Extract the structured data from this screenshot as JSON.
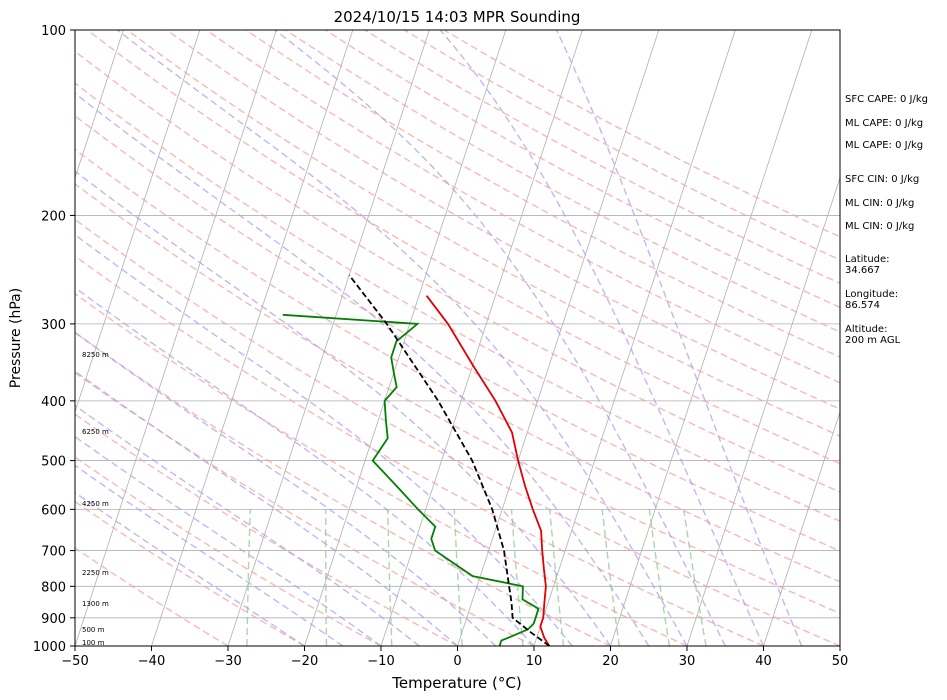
{
  "chart_data": {
    "type": "line",
    "title": "2024/10/15 14:03 MPR Sounding",
    "xlabel": "Temperature (°C)",
    "ylabel": "Pressure (hPa)",
    "xlim": [
      -50,
      50
    ],
    "ylim": [
      1000,
      100
    ],
    "y_scale": "log",
    "x_ticks": [
      "−50",
      "−40",
      "−30",
      "−20",
      "−10",
      "0",
      "10",
      "20",
      "30",
      "40",
      "50"
    ],
    "y_ticks": [
      "100",
      "200",
      "300",
      "400",
      "500",
      "600",
      "700",
      "800",
      "900",
      "1000"
    ],
    "grid": true,
    "series": [
      {
        "role": "temperature",
        "color": "#e00000",
        "style": "solid",
        "points": [
          [
            1000,
            12
          ],
          [
            970,
            11
          ],
          [
            930,
            10
          ],
          [
            900,
            10
          ],
          [
            850,
            9.5
          ],
          [
            800,
            9
          ],
          [
            750,
            8
          ],
          [
            700,
            7
          ],
          [
            650,
            6
          ],
          [
            600,
            4
          ],
          [
            550,
            2
          ],
          [
            500,
            0
          ],
          [
            450,
            -2
          ],
          [
            400,
            -5.5
          ],
          [
            350,
            -10
          ],
          [
            300,
            -15
          ],
          [
            270,
            -19
          ]
        ]
      },
      {
        "role": "dewpoint",
        "color": "#008000",
        "style": "solid",
        "points": [
          [
            1000,
            5.5
          ],
          [
            980,
            5.5
          ],
          [
            960,
            7
          ],
          [
            940,
            8.5
          ],
          [
            920,
            9
          ],
          [
            900,
            9
          ],
          [
            870,
            9
          ],
          [
            840,
            6.5
          ],
          [
            800,
            6
          ],
          [
            770,
            -1
          ],
          [
            700,
            -7
          ],
          [
            670,
            -8
          ],
          [
            640,
            -8
          ],
          [
            600,
            -11
          ],
          [
            560,
            -14
          ],
          [
            500,
            -19
          ],
          [
            460,
            -18
          ],
          [
            430,
            -19
          ],
          [
            400,
            -20
          ],
          [
            380,
            -19
          ],
          [
            360,
            -20
          ],
          [
            340,
            -21
          ],
          [
            320,
            -21
          ],
          [
            310,
            -20
          ],
          [
            300,
            -19
          ],
          [
            290,
            -37
          ]
        ]
      },
      {
        "role": "parcel-profile",
        "color": "#000000",
        "style": "dashed",
        "points": [
          [
            1000,
            12
          ],
          [
            950,
            9
          ],
          [
            900,
            6
          ],
          [
            850,
            5.2
          ],
          [
            800,
            4.2
          ],
          [
            700,
            2
          ],
          [
            600,
            -1.3
          ],
          [
            500,
            -6
          ],
          [
            400,
            -13
          ],
          [
            300,
            -23
          ],
          [
            250,
            -30
          ]
        ]
      }
    ],
    "height_labels": [
      "100 m",
      "500 m",
      "1300 m",
      "2250 m",
      "4250 m",
      "6250 m",
      "8250 m"
    ],
    "annotations": [
      "SFC CAPE: 0 J/kg",
      "ML CAPE: 0 J/kg",
      "ML CAPE: 0 J/kg",
      "SFC CIN: 0 J/kg",
      "ML CIN: 0 J/kg",
      "ML CIN: 0 J/kg",
      "Latitude:",
      "34.667",
      "Longitude:",
      "86.574",
      "Altitude:",
      "200 m AGL"
    ],
    "colors": {
      "isotherm": "#b0b0b0",
      "dry_adiabat": "#f6a0a0",
      "moist_adiabat": "#a8a0f0",
      "mixing_ratio": "#90c890",
      "isobar": "#b0b0b0"
    }
  }
}
